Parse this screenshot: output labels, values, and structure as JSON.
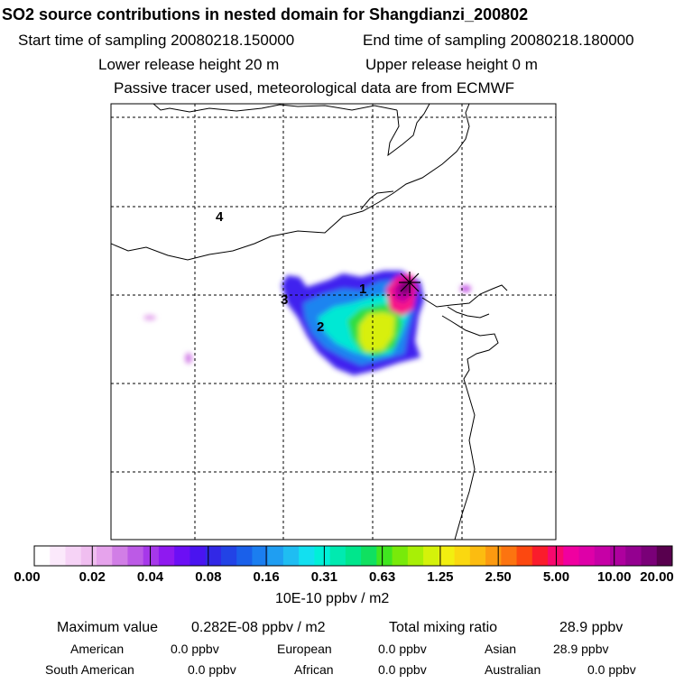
{
  "header": {
    "title": "SO2 source contributions in nested domain for Shangdianzi_200802",
    "start_time": "Start time of sampling 20080218.150000",
    "end_time": "End time of sampling 20080218.180000",
    "lower_height": "Lower release height   20 m",
    "upper_height": "Upper release height    0 m",
    "tracer_note": "Passive tracer used, meteorological data are from ECMWF"
  },
  "map": {
    "region_labels": [
      "1",
      "2",
      "3",
      "4"
    ],
    "station_marker": "x-marker-icon"
  },
  "colorbar": {
    "ticks": [
      "0.00",
      "0.02",
      "0.04",
      "0.08",
      "0.16",
      "0.31",
      "0.63",
      "1.25",
      "2.50",
      "5.00",
      "10.00",
      "20.00"
    ],
    "colors": [
      "#ffffff",
      "#fbe9fb",
      "#f6d3f6",
      "#f0bef0",
      "#e6a3ec",
      "#d17ee6",
      "#bc5ae6",
      "#a638ea",
      "#8f19f0",
      "#6c0ff5",
      "#4a14f0",
      "#3228e6",
      "#2243e6",
      "#1a60ea",
      "#1b7ef0",
      "#1f9ef2",
      "#1fbdf2",
      "#12e0f0",
      "#00f0d8",
      "#00eab0",
      "#00e68c",
      "#10e060",
      "#40e620",
      "#78ea0a",
      "#a8ef06",
      "#d4f20a",
      "#f2ef10",
      "#fad810",
      "#fcbc10",
      "#fc9a10",
      "#fc7410",
      "#fc4810",
      "#fa1c2c",
      "#f8086e",
      "#f000a0",
      "#de00a8",
      "#c600a6",
      "#ae009e",
      "#940090",
      "#7a0078",
      "#58004e"
    ],
    "unit": "10E-10 ppbv / m2"
  },
  "summary": {
    "max_label": "Maximum value",
    "max_value": "0.282E-08 ppbv / m2",
    "total_label": "Total mixing ratio",
    "total_value": "28.9 ppbv",
    "regions": [
      {
        "name": "American",
        "value": "0.0 ppbv"
      },
      {
        "name": "European",
        "value": "0.0 ppbv"
      },
      {
        "name": "Asian",
        "value": "28.9 ppbv"
      },
      {
        "name": "South American",
        "value": "0.0 ppbv"
      },
      {
        "name": "African",
        "value": "0.0 ppbv"
      },
      {
        "name": "Australian",
        "value": "0.0 ppbv"
      }
    ]
  }
}
